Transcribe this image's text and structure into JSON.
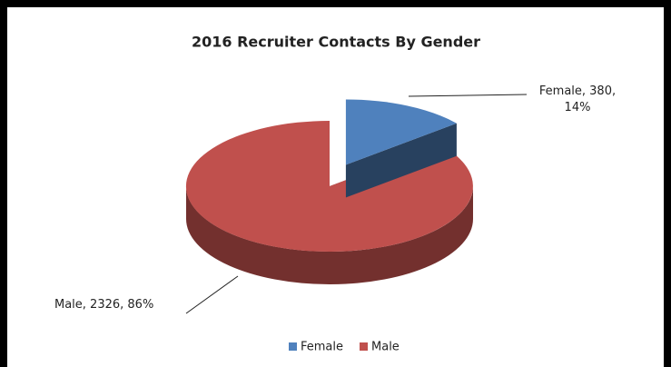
{
  "chart_data": {
    "type": "pie",
    "title": "2016 Recruiter Contacts By Gender",
    "categories": [
      "Female",
      "Male"
    ],
    "values": [
      380,
      2326
    ],
    "value_labels": [
      "Female, 380, 14%",
      "Male, 2326, 86%"
    ],
    "colors": [
      "#4f81bd",
      "#c0504d"
    ],
    "legend": "bottom",
    "exploded": [
      true,
      false
    ]
  }
}
